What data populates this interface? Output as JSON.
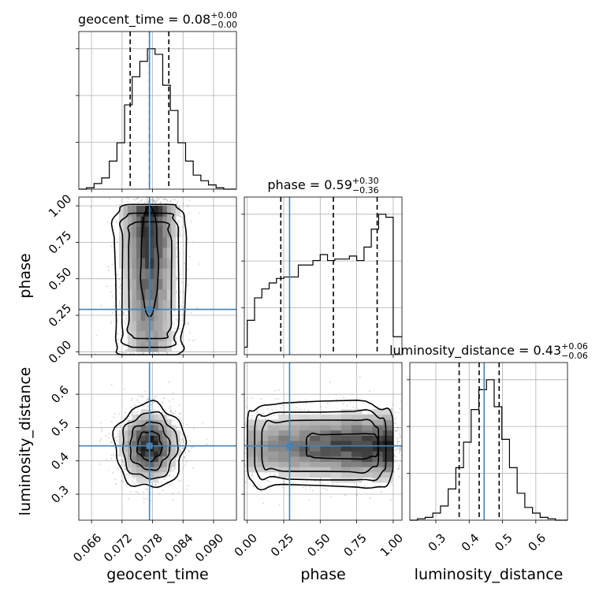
{
  "chart_data": {
    "type": "corner",
    "parameters": [
      "geocent_time",
      "phase",
      "luminosity_distance"
    ],
    "axis_labels": {
      "geocent_time": "geocent_time",
      "phase": "phase",
      "luminosity_distance": "luminosity_distance"
    },
    "ranges": {
      "geocent_time": [
        0.0635,
        0.0945
      ],
      "phase": [
        -0.02,
        1.06
      ],
      "luminosity_distance": [
        0.222,
        0.695
      ]
    },
    "ticks": {
      "geocent_time": [
        0.066,
        0.072,
        0.078,
        0.084,
        0.09
      ],
      "phase": [
        0.0,
        0.25,
        0.5,
        0.75,
        1.0
      ],
      "luminosity_distance": [
        0.3,
        0.4,
        0.5,
        0.6
      ]
    },
    "tick_labels": {
      "geocent_time": [
        "0.066",
        "0.072",
        "0.078",
        "0.084",
        "0.090"
      ],
      "phase": [
        "0.00",
        "0.25",
        "0.50",
        "0.75",
        "1.00"
      ],
      "luminosity_distance": [
        "0.3",
        "0.4",
        "0.5",
        "0.6"
      ]
    },
    "truths": {
      "geocent_time": 0.0774,
      "phase": 0.29,
      "luminosity_distance": 0.445
    },
    "truth_color": "#4682b4",
    "marginals": [
      {
        "parameter": "geocent_time",
        "title_prefix": "geocent_time = ",
        "median": "0.08",
        "upper": "+0.00",
        "lower": "−0.00",
        "quantiles": [
          0.0736,
          0.0774,
          0.0812
        ],
        "bin_edges": [
          0.0635,
          0.065,
          0.0665,
          0.068,
          0.0695,
          0.071,
          0.0725,
          0.074,
          0.0755,
          0.077,
          0.0785,
          0.08,
          0.0815,
          0.083,
          0.0845,
          0.086,
          0.0875,
          0.089,
          0.0905,
          0.092,
          0.0935,
          0.0945
        ],
        "counts": [
          0,
          0.01,
          0.04,
          0.08,
          0.2,
          0.33,
          0.6,
          0.8,
          0.91,
          1.0,
          0.96,
          0.74,
          0.56,
          0.33,
          0.2,
          0.1,
          0.06,
          0.03,
          0.01,
          0,
          0
        ]
      },
      {
        "parameter": "phase",
        "title_prefix": "phase = ",
        "median": "0.59",
        "upper": "+0.30",
        "lower": "−0.36",
        "quantiles": [
          0.23,
          0.59,
          0.89
        ],
        "bin_edges": [
          -0.02,
          0.0,
          0.05,
          0.1,
          0.15,
          0.2,
          0.25,
          0.3,
          0.35,
          0.4,
          0.45,
          0.5,
          0.55,
          0.6,
          0.65,
          0.7,
          0.75,
          0.8,
          0.85,
          0.9,
          0.95,
          1.0,
          1.06
        ],
        "counts": [
          0.05,
          0.23,
          0.38,
          0.44,
          0.48,
          0.51,
          0.52,
          0.52,
          0.6,
          0.6,
          0.63,
          0.67,
          0.63,
          0.64,
          0.64,
          0.66,
          0.63,
          0.72,
          0.84,
          0.94,
          0.92,
          0.12
        ]
      },
      {
        "parameter": "luminosity_distance",
        "title_prefix": "luminosity_distance = ",
        "median": "0.43",
        "upper": "+0.06",
        "lower": "−0.06",
        "quantiles": [
          0.37,
          0.43,
          0.49
        ],
        "bin_edges": [
          0.222,
          0.245,
          0.268,
          0.291,
          0.314,
          0.337,
          0.36,
          0.383,
          0.406,
          0.429,
          0.452,
          0.475,
          0.498,
          0.521,
          0.544,
          0.567,
          0.59,
          0.613,
          0.636,
          0.659,
          0.682,
          0.695
        ],
        "counts": [
          0,
          0.01,
          0.02,
          0.05,
          0.1,
          0.22,
          0.37,
          0.55,
          0.78,
          0.92,
          0.99,
          0.8,
          0.57,
          0.37,
          0.19,
          0.09,
          0.05,
          0.02,
          0.01,
          0,
          0
        ]
      }
    ],
    "joint_2d": [
      {
        "x": "geocent_time",
        "y": "phase",
        "center": [
          0.0774,
          0.6
        ],
        "spread": [
          0.003,
          0.33
        ]
      },
      {
        "x": "geocent_time",
        "y": "luminosity_distance",
        "center": [
          0.0774,
          0.445
        ],
        "spread": [
          0.003,
          0.055
        ]
      },
      {
        "x": "phase",
        "y": "luminosity_distance",
        "center": [
          0.6,
          0.445
        ],
        "spread": [
          0.33,
          0.055
        ]
      }
    ],
    "grid": true
  }
}
